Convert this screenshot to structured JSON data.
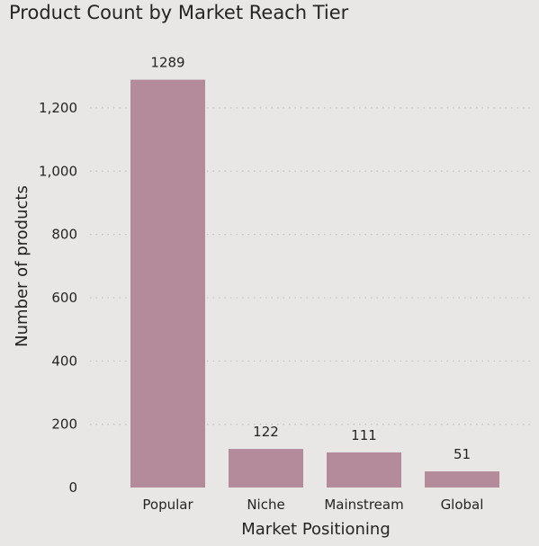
{
  "chart_data": {
    "type": "bar",
    "title": "Product Count by Market Reach Tier",
    "xlabel": "Market Positioning",
    "ylabel": "Number of products",
    "categories": [
      "Popular",
      "Niche",
      "Mainstream",
      "Global"
    ],
    "values": [
      1289,
      122,
      111,
      51
    ],
    "data_labels": [
      "1289",
      "122",
      "111",
      "51"
    ],
    "ylim": [
      0,
      1380
    ],
    "yticks": [
      0,
      200,
      400,
      600,
      800,
      1000,
      1200
    ],
    "ytick_labels": [
      "0",
      "200",
      "400",
      "600",
      "800",
      "1,000",
      "1,200"
    ],
    "grid": true,
    "legend": "none",
    "colors": {
      "bar": "#b38b9b",
      "background": "#e9e7e6",
      "text": "#252423",
      "grid": "#c4c2c0"
    }
  }
}
